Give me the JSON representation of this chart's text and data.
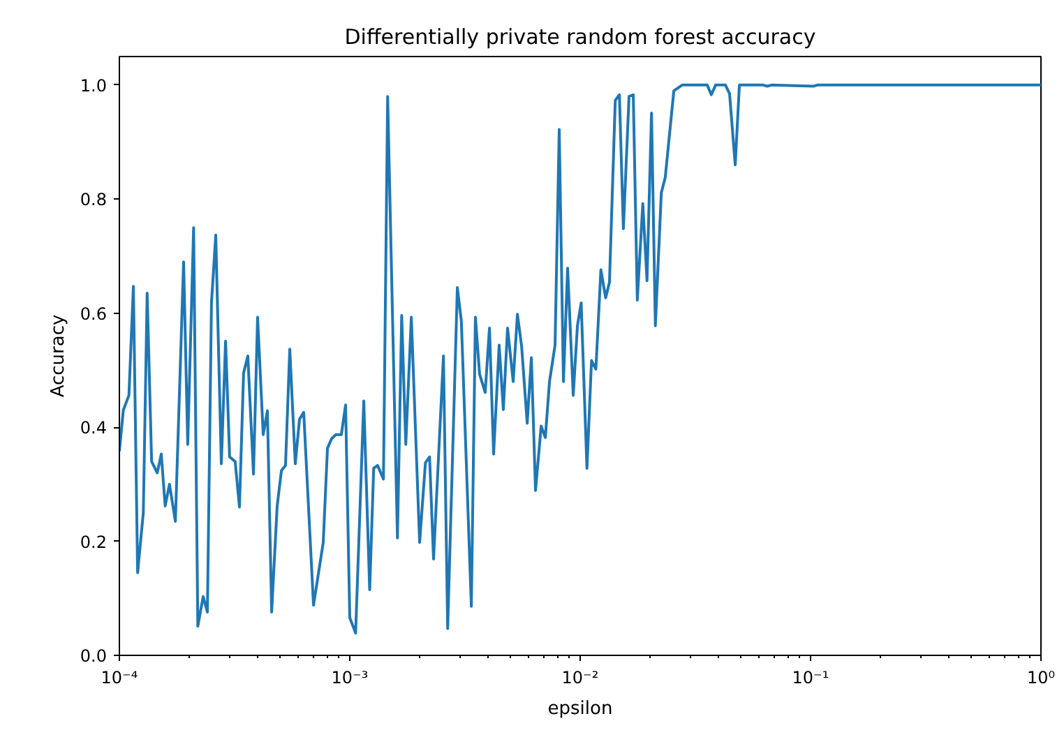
{
  "chart_data": {
    "type": "line",
    "title": "Differentially private random forest accuracy",
    "xlabel": "epsilon",
    "ylabel": "Accuracy",
    "log": "x",
    "xlim": [
      0.0001,
      1
    ],
    "xticks": [
      {
        "value": 0.0001,
        "label": "10⁻⁴"
      },
      {
        "value": 0.001,
        "label": "10⁻³"
      },
      {
        "value": 0.01,
        "label": "10⁻²"
      },
      {
        "value": 0.1,
        "label": "10⁻¹"
      },
      {
        "value": 1,
        "label": "10⁰"
      }
    ],
    "ylim": [
      0,
      1.05
    ],
    "yticks": [
      {
        "value": 0,
        "label": "0.0"
      },
      {
        "value": 0.2,
        "label": "0.2"
      },
      {
        "value": 0.4,
        "label": "0.4"
      },
      {
        "value": 0.6,
        "label": "0.6"
      },
      {
        "value": 0.8,
        "label": "0.8"
      },
      {
        "value": 1,
        "label": "1.0"
      }
    ],
    "grid": false,
    "series": [
      {
        "color": "#1f77b4",
        "x": [
          0.0001,
          0.000104,
          0.00011,
          0.000115,
          0.00012,
          0.000127,
          0.000132,
          0.000138,
          0.000146,
          0.000152,
          0.000158,
          0.000165,
          0.000175,
          0.00019,
          0.000198,
          0.00021,
          0.000219,
          0.000231,
          0.000241,
          0.000251,
          0.000262,
          0.000277,
          0.000289,
          0.000301,
          0.000318,
          0.000332,
          0.000346,
          0.000361,
          0.000382,
          0.000398,
          0.000421,
          0.000439,
          0.000458,
          0.000484,
          0.000505,
          0.000526,
          0.000549,
          0.00058,
          0.000605,
          0.000631,
          0.000696,
          0.000767,
          0.0008,
          0.000834,
          0.00087,
          0.000919,
          0.000959,
          0.001,
          0.00106,
          0.00115,
          0.00122,
          0.00127,
          0.00132,
          0.0014,
          0.00146,
          0.00161,
          0.00168,
          0.00175,
          0.00185,
          0.00201,
          0.00213,
          0.00222,
          0.00231,
          0.00255,
          0.00266,
          0.00293,
          0.00305,
          0.00337,
          0.00351,
          0.00366,
          0.00387,
          0.00404,
          0.00421,
          0.00445,
          0.00464,
          0.00484,
          0.00512,
          0.00534,
          0.00557,
          0.00589,
          0.00614,
          0.0064,
          0.00677,
          0.00706,
          0.00736,
          0.00778,
          0.00811,
          0.00846,
          0.00882,
          0.00933,
          0.00973,
          0.0101,
          0.0107,
          0.0112,
          0.0117,
          0.0123,
          0.0129,
          0.0134,
          0.0142,
          0.0148,
          0.0154,
          0.0163,
          0.017,
          0.0177,
          0.0187,
          0.0195,
          0.0204,
          0.0212,
          0.0225,
          0.0234,
          0.0255,
          0.0277,
          0.0314,
          0.0356,
          0.0371,
          0.0387,
          0.0427,
          0.0445,
          0.0471,
          0.0491,
          0.0512,
          0.0622,
          0.0649,
          0.0676,
          0.103,
          0.107,
          1
        ],
        "values": [
          0.358,
          0.43,
          0.456,
          0.647,
          0.145,
          0.25,
          0.635,
          0.34,
          0.32,
          0.353,
          0.262,
          0.3,
          0.235,
          0.69,
          0.37,
          0.75,
          0.051,
          0.103,
          0.076,
          0.618,
          0.737,
          0.336,
          0.551,
          0.348,
          0.34,
          0.26,
          0.495,
          0.525,
          0.318,
          0.593,
          0.387,
          0.429,
          0.076,
          0.262,
          0.324,
          0.333,
          0.537,
          0.336,
          0.414,
          0.426,
          0.088,
          0.198,
          0.363,
          0.38,
          0.387,
          0.387,
          0.439,
          0.066,
          0.039,
          0.446,
          0.115,
          0.328,
          0.333,
          0.309,
          0.98,
          0.206,
          0.596,
          0.37,
          0.593,
          0.198,
          0.338,
          0.348,
          0.169,
          0.525,
          0.047,
          0.645,
          0.586,
          0.086,
          0.593,
          0.493,
          0.461,
          0.574,
          0.353,
          0.544,
          0.431,
          0.574,
          0.48,
          0.598,
          0.542,
          0.407,
          0.522,
          0.289,
          0.402,
          0.382,
          0.48,
          0.544,
          0.922,
          0.48,
          0.679,
          0.456,
          0.578,
          0.618,
          0.328,
          0.517,
          0.502,
          0.676,
          0.627,
          0.654,
          0.973,
          0.983,
          0.748,
          0.98,
          0.983,
          0.623,
          0.792,
          0.657,
          0.951,
          0.578,
          0.811,
          0.838,
          0.99,
          1.0,
          1.0,
          1.0,
          0.983,
          1.0,
          1.0,
          0.985,
          0.86,
          1.0,
          1.0,
          1.0,
          0.998,
          1.0,
          0.998,
          1.0,
          1.0
        ]
      }
    ]
  }
}
